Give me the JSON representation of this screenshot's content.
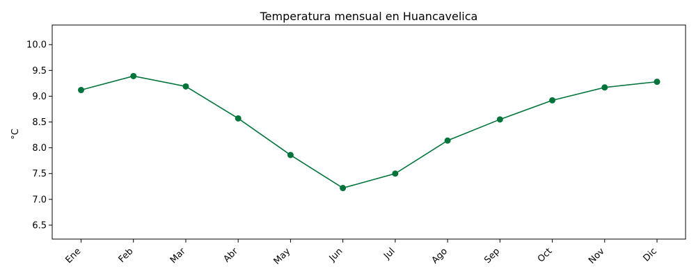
{
  "chart_data": {
    "type": "line",
    "title": "Temperatura mensual en Huancavelica",
    "xlabel": "",
    "ylabel": "°C",
    "categories": [
      "Ene",
      "Feb",
      "Mar",
      "Abr",
      "May",
      "Jun",
      "Jul",
      "Ago",
      "Sep",
      "Oct",
      "Nov",
      "Dic"
    ],
    "series": [
      {
        "values": [
          9.12,
          9.39,
          9.19,
          8.57,
          7.86,
          7.22,
          7.5,
          8.14,
          8.55,
          8.92,
          9.17,
          9.28
        ]
      }
    ],
    "yticks": [
      "6.5",
      "7.0",
      "7.5",
      "8.0",
      "8.5",
      "9.0",
      "9.5",
      "10.0"
    ],
    "ylim": [
      6.23,
      10.38
    ],
    "grid": false,
    "colors": {
      "line": "#00743a",
      "marker": "#00743a"
    }
  }
}
